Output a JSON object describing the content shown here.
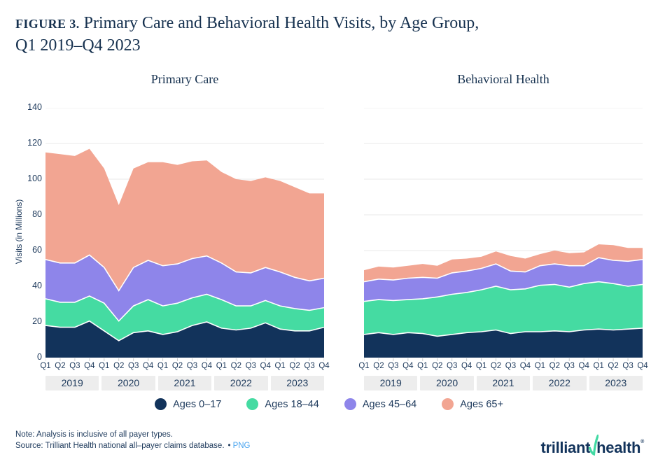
{
  "figure": {
    "label": "FIGURE 3.",
    "title_line1": "Primary Care and Behavioral Health Visits, by Age Group,",
    "title_line2": "Q1 2019–Q4 2023"
  },
  "y_axis": {
    "title": "Visits (in Millions)",
    "ticks": [
      140,
      120,
      100,
      80,
      60,
      40,
      20,
      0
    ],
    "max": 140
  },
  "x_axis": {
    "quarter_labels": [
      "Q1",
      "Q2",
      "Q3",
      "Q4"
    ],
    "years": [
      "2019",
      "2020",
      "2021",
      "2022",
      "2023"
    ]
  },
  "legend": {
    "items": [
      {
        "label": "Ages 0–17"
      },
      {
        "label": "Ages 18–44"
      },
      {
        "label": "Ages 45–64"
      },
      {
        "label": "Ages 65+"
      }
    ]
  },
  "footer": {
    "note": "Note: Analysis is inclusive of all payer types.",
    "source": "Source: Trilliant Health national all–payer claims database.",
    "bullet": "•",
    "link": "PNG"
  },
  "logo": {
    "word1": "trilliant",
    "word2": "health",
    "registered": "®"
  },
  "colors": {
    "series": [
      "#12335B",
      "#45DBA2",
      "#8E85EA",
      "#F2A592"
    ],
    "grid": "#E8E8E8",
    "baseline": "#D8D8D8",
    "tick": "#CCCCCC",
    "separator": "#FFFFFF",
    "band_bg": "#EDEDED",
    "text": "#1E3A5C",
    "title": "#16314F",
    "link_blue": "#4BA5EF",
    "logo_green": "#41D9A3",
    "logo_navy": "#12335B"
  },
  "chart_data": [
    {
      "type": "area",
      "stacked": true,
      "title": "Primary Care",
      "ylabel": "Visits (in Millions)",
      "ylim": [
        0,
        140
      ],
      "grid": true,
      "categories": [
        "Q1 2019",
        "Q2 2019",
        "Q3 2019",
        "Q4 2019",
        "Q1 2020",
        "Q2 2020",
        "Q3 2020",
        "Q4 2020",
        "Q1 2021",
        "Q2 2021",
        "Q3 2021",
        "Q4 2021",
        "Q1 2022",
        "Q2 2022",
        "Q3 2022",
        "Q4 2022",
        "Q1 2023",
        "Q2 2023",
        "Q3 2023",
        "Q4 2023"
      ],
      "series": [
        {
          "name": "Ages 0–17",
          "values": [
            18,
            17,
            17,
            20.5,
            15,
            9.5,
            14,
            15,
            13,
            14.5,
            18,
            20,
            16.5,
            15.5,
            16.5,
            19.5,
            16,
            15,
            15,
            17
          ]
        },
        {
          "name": "Ages 18–44",
          "values": [
            15,
            14,
            14,
            14,
            15.5,
            11,
            15,
            17.5,
            16,
            16,
            15.5,
            15.5,
            16,
            13.5,
            12.5,
            12.5,
            13,
            12.5,
            11.5,
            11
          ]
        },
        {
          "name": "Ages 45–64",
          "values": [
            22,
            22,
            22,
            23,
            20,
            17,
            21.5,
            22,
            22.5,
            22,
            22,
            21.5,
            20.5,
            19,
            18.5,
            18.5,
            19,
            17.5,
            16.5,
            16.5
          ]
        },
        {
          "name": "Ages 65+",
          "values": [
            60,
            61,
            60,
            59.5,
            55.5,
            48,
            55.5,
            55,
            58,
            55.5,
            54.5,
            53.5,
            51,
            52,
            51.5,
            50.5,
            51,
            50.5,
            49,
            47.5
          ]
        }
      ]
    },
    {
      "type": "area",
      "stacked": true,
      "title": "Behavioral Health",
      "ylabel": "Visits (in Millions)",
      "ylim": [
        0,
        140
      ],
      "grid": true,
      "categories": [
        "Q1 2019",
        "Q2 2019",
        "Q3 2019",
        "Q4 2019",
        "Q1 2020",
        "Q2 2020",
        "Q3 2020",
        "Q4 2020",
        "Q1 2021",
        "Q2 2021",
        "Q3 2021",
        "Q4 2021",
        "Q1 2022",
        "Q2 2022",
        "Q3 2022",
        "Q4 2022",
        "Q1 2023",
        "Q2 2023",
        "Q3 2023",
        "Q4 2023"
      ],
      "series": [
        {
          "name": "Ages 0–17",
          "values": [
            13,
            14,
            13,
            14,
            13.5,
            12,
            13,
            14,
            14.5,
            15.5,
            13.5,
            14.5,
            14.5,
            15,
            14.5,
            15.5,
            16,
            15.5,
            16,
            16.5
          ]
        },
        {
          "name": "Ages 18–44",
          "values": [
            18.5,
            18.5,
            19,
            18.5,
            19.5,
            22,
            22.5,
            22.5,
            23.5,
            24.5,
            24.5,
            24,
            26,
            26,
            25,
            26,
            26.5,
            26,
            24,
            24.5
          ]
        },
        {
          "name": "Ages 45–64",
          "values": [
            11,
            11.5,
            11.5,
            12,
            12,
            10.5,
            12,
            12,
            12,
            12.5,
            10.5,
            9.5,
            11,
            11.5,
            12,
            10,
            13.5,
            13,
            14,
            14
          ]
        },
        {
          "name": "Ages 65+",
          "values": [
            6.5,
            7,
            7,
            7,
            7.5,
            7,
            7.5,
            7,
            6.5,
            7,
            8.5,
            7.5,
            6.5,
            7.5,
            7,
            7.5,
            7.5,
            8.5,
            7.5,
            6.5
          ]
        }
      ]
    }
  ]
}
